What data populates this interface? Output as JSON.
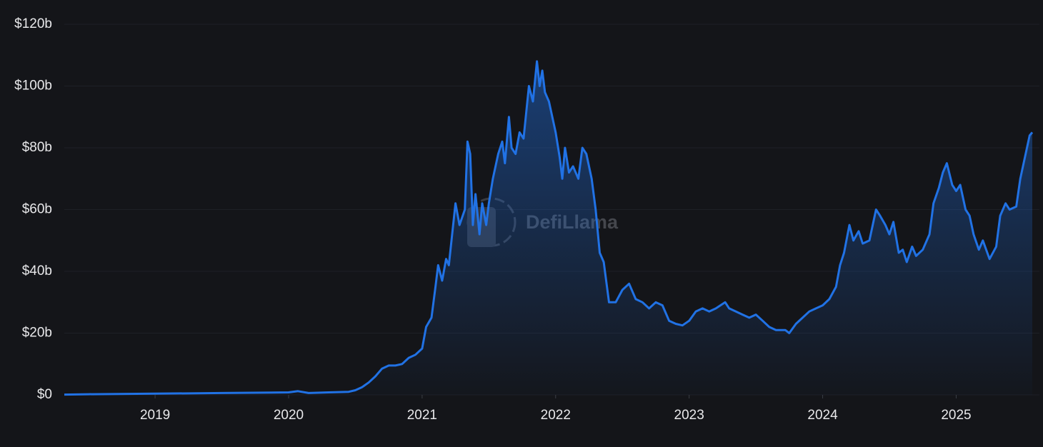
{
  "chart_data": {
    "type": "area",
    "watermark": "DefiLlama",
    "color": "#2172e5",
    "grid": true,
    "xlim": [
      2018.32,
      2025.57
    ],
    "xticks": [
      2019,
      2020,
      2021,
      2022,
      2023,
      2024,
      2025
    ],
    "ylim": [
      0,
      120
    ],
    "yticks": [
      {
        "value": 0,
        "label": "$0"
      },
      {
        "value": 20,
        "label": "$20b"
      },
      {
        "value": 40,
        "label": "$40b"
      },
      {
        "value": 60,
        "label": "$60b"
      },
      {
        "value": 80,
        "label": "$80b"
      },
      {
        "value": 100,
        "label": "$100b"
      },
      {
        "value": 120,
        "label": "$120b"
      }
    ],
    "x": [
      2018.32,
      2018.5,
      2019.0,
      2019.5,
      2020.0,
      2020.07,
      2020.15,
      2020.3,
      2020.45,
      2020.5,
      2020.55,
      2020.6,
      2020.65,
      2020.7,
      2020.75,
      2020.8,
      2020.85,
      2020.9,
      2020.95,
      2021.0,
      2021.03,
      2021.07,
      2021.1,
      2021.12,
      2021.15,
      2021.18,
      2021.2,
      2021.22,
      2021.25,
      2021.28,
      2021.32,
      2021.34,
      2021.36,
      2021.38,
      2021.4,
      2021.43,
      2021.45,
      2021.48,
      2021.5,
      2021.53,
      2021.57,
      2021.6,
      2021.62,
      2021.65,
      2021.67,
      2021.7,
      2021.73,
      2021.76,
      2021.8,
      2021.83,
      2021.86,
      2021.88,
      2021.9,
      2021.92,
      2021.95,
      2022.0,
      2022.03,
      2022.05,
      2022.07,
      2022.1,
      2022.13,
      2022.17,
      2022.2,
      2022.23,
      2022.27,
      2022.3,
      2022.33,
      2022.36,
      2022.4,
      2022.45,
      2022.5,
      2022.55,
      2022.6,
      2022.65,
      2022.7,
      2022.75,
      2022.8,
      2022.85,
      2022.9,
      2022.95,
      2023.0,
      2023.05,
      2023.1,
      2023.15,
      2023.2,
      2023.27,
      2023.3,
      2023.35,
      2023.4,
      2023.45,
      2023.5,
      2023.55,
      2023.6,
      2023.65,
      2023.72,
      2023.75,
      2023.8,
      2023.85,
      2023.9,
      2023.95,
      2024.0,
      2024.05,
      2024.1,
      2024.13,
      2024.16,
      2024.2,
      2024.23,
      2024.27,
      2024.3,
      2024.35,
      2024.4,
      2024.43,
      2024.47,
      2024.5,
      2024.53,
      2024.57,
      2024.6,
      2024.63,
      2024.67,
      2024.7,
      2024.75,
      2024.8,
      2024.83,
      2024.87,
      2024.9,
      2024.93,
      2024.97,
      2025.0,
      2025.03,
      2025.07,
      2025.1,
      2025.13,
      2025.17,
      2025.2,
      2025.25,
      2025.3,
      2025.33,
      2025.37,
      2025.4,
      2025.45,
      2025.48,
      2025.52,
      2025.55,
      2025.57
    ],
    "values": [
      0.1,
      0.2,
      0.4,
      0.6,
      0.8,
      1.2,
      0.6,
      0.8,
      1.0,
      1.5,
      2.5,
      4,
      6,
      8.5,
      9.5,
      9.5,
      10,
      12,
      13,
      15,
      22,
      25,
      35,
      42,
      37,
      44,
      42,
      50,
      62,
      55,
      60,
      82,
      78,
      55,
      65,
      52,
      62,
      55,
      62,
      70,
      78,
      82,
      75,
      90,
      80,
      78,
      85,
      83,
      100,
      95,
      108,
      100,
      105,
      98,
      95,
      85,
      77,
      70,
      80,
      72,
      74,
      70,
      80,
      78,
      70,
      60,
      46,
      43,
      30,
      30,
      34,
      36,
      31,
      30,
      28,
      30,
      29,
      24,
      23,
      22.5,
      24,
      27,
      28,
      27,
      28,
      30,
      28,
      27,
      26,
      25,
      26,
      24,
      22,
      21,
      21,
      20,
      23,
      25,
      27,
      28,
      29,
      31,
      35,
      42,
      46,
      55,
      50,
      53,
      49,
      50,
      60,
      58,
      55,
      52,
      56,
      46,
      47,
      43,
      48,
      45,
      47,
      52,
      62,
      67,
      72,
      75,
      68,
      66,
      68,
      60,
      58,
      52,
      47,
      50,
      44,
      48,
      58,
      62,
      60,
      61,
      70,
      78,
      84,
      85
    ]
  }
}
